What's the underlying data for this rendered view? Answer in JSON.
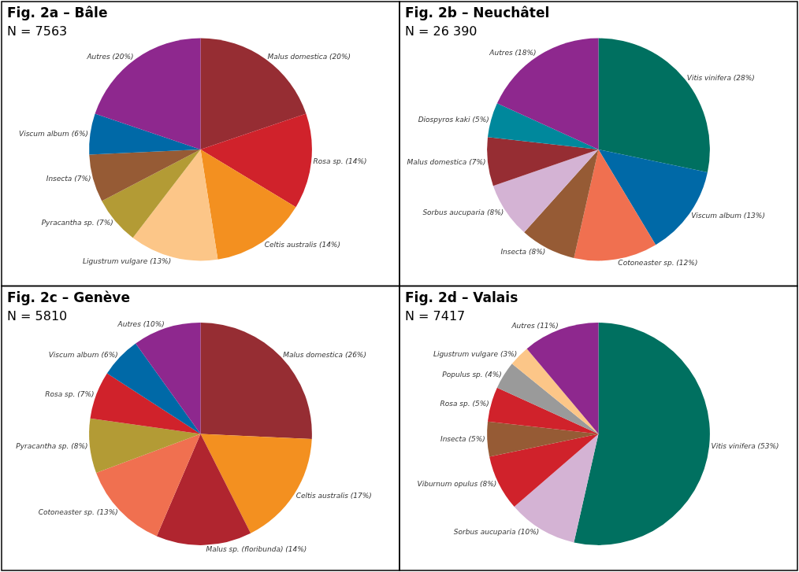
{
  "chart_data": [
    {
      "type": "pie",
      "title": "Fig. 2a – Bâle",
      "subtitle": "N = 7563",
      "categories": [
        "Malus domestica (20%)",
        "Rosa sp. (14%)",
        "Celtis australis (14%)",
        "Ligustrum vulgare (13%)",
        "Pyracantha sp. (7%)",
        "Insecta (7%)",
        "Viscum album (6%)",
        "Autres (20%)"
      ],
      "values": [
        20,
        14,
        14,
        13,
        7,
        7,
        6,
        20
      ],
      "colors": [
        "#962d33",
        "#d0222b",
        "#f39020",
        "#fcc688",
        "#b39b35",
        "#965b35",
        "#0069a7",
        "#8e288e"
      ]
    },
    {
      "type": "pie",
      "title": "Fig. 2b – Neuchâtel",
      "subtitle": "N = 26 390",
      "categories": [
        "Vitis vinifera (28%)",
        "Viscum album (13%)",
        "Cotoneaster sp. (12%)",
        "Insecta (8%)",
        "Sorbus aucuparia (8%)",
        "Malus domestica (7%)",
        "Diospyros kaki (5%)",
        "Autres (18%)"
      ],
      "values": [
        28,
        13,
        12,
        8,
        8,
        7,
        5,
        18
      ],
      "colors": [
        "#007060",
        "#0069a7",
        "#f07050",
        "#965b35",
        "#d4b3d4",
        "#962d33",
        "#00889c",
        "#8e288e"
      ]
    },
    {
      "type": "pie",
      "title": "Fig. 2c – Genève",
      "subtitle": "N = 5810",
      "categories": [
        "Malus domestica (26%)",
        "Celtis australis (17%)",
        "Malus sp. (floribunda) (14%)",
        "Cotoneaster sp. (13%)",
        "Pyracantha sp. (8%)",
        "Rosa sp. (7%)",
        "Viscum album (6%)",
        "Autres (10%)"
      ],
      "values": [
        26,
        17,
        14,
        13,
        8,
        7,
        6,
        10
      ],
      "colors": [
        "#962d33",
        "#f39020",
        "#b0252f",
        "#f07050",
        "#b39b35",
        "#d0222b",
        "#0069a7",
        "#8e288e"
      ]
    },
    {
      "type": "pie",
      "title": "Fig. 2d – Valais",
      "subtitle": "N = 7417",
      "categories": [
        "Vitis vinifera (53%)",
        "Sorbus aucuparia (10%)",
        "Viburnum opulus (8%)",
        "Insecta (5%)",
        "Rosa sp. (5%)",
        "Populus sp. (4%)",
        "Ligustrum vulgare (3%)",
        "Autres (11%)"
      ],
      "values": [
        53,
        10,
        8,
        5,
        5,
        4,
        3,
        11
      ],
      "colors": [
        "#007060",
        "#d4b3d4",
        "#d0222b",
        "#965b35",
        "#d0222b",
        "#9a9a9a",
        "#fcc688",
        "#8e288e"
      ]
    }
  ]
}
